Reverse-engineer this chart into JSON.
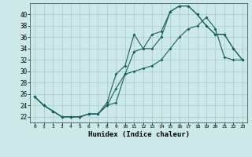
{
  "xlabel": "Humidex (Indice chaleur)",
  "ylabel": "",
  "background_color": "#cce8e8",
  "grid_color": "#aacece",
  "line_color": "#1a6060",
  "xlim": [
    -0.5,
    23.5
  ],
  "ylim": [
    21,
    42
  ],
  "yticks": [
    22,
    24,
    26,
    28,
    30,
    32,
    34,
    36,
    38,
    40
  ],
  "xticks": [
    0,
    1,
    2,
    3,
    4,
    5,
    6,
    7,
    8,
    9,
    10,
    11,
    12,
    13,
    14,
    15,
    16,
    17,
    18,
    19,
    20,
    21,
    22,
    23
  ],
  "series1_x": [
    0,
    1,
    2,
    3,
    4,
    5,
    6,
    7,
    8,
    9,
    10,
    11,
    12,
    13,
    14,
    15,
    16,
    17,
    18,
    19,
    20,
    21,
    22,
    23
  ],
  "series1_y": [
    25.5,
    24.0,
    23.0,
    22.0,
    22.0,
    22.0,
    22.5,
    22.5,
    24.0,
    27.0,
    29.5,
    33.5,
    34.0,
    36.5,
    37.0,
    40.5,
    41.5,
    41.5,
    40.0,
    38.0,
    36.5,
    36.5,
    34.0,
    32.0
  ],
  "series2_x": [
    0,
    1,
    2,
    3,
    4,
    5,
    6,
    7,
    8,
    9,
    10,
    11,
    12,
    13,
    14,
    15,
    16,
    17,
    18,
    19,
    20,
    21,
    22,
    23
  ],
  "series2_y": [
    25.5,
    24.0,
    23.0,
    22.0,
    22.0,
    22.0,
    22.5,
    22.5,
    24.5,
    29.5,
    31.0,
    36.5,
    34.0,
    34.0,
    36.0,
    40.5,
    41.5,
    41.5,
    40.0,
    38.0,
    36.5,
    36.5,
    34.0,
    32.0
  ],
  "series3_x": [
    0,
    1,
    2,
    3,
    4,
    5,
    6,
    7,
    8,
    9,
    10,
    11,
    12,
    13,
    14,
    15,
    16,
    17,
    18,
    19,
    20,
    21,
    22,
    23
  ],
  "series3_y": [
    25.5,
    24.0,
    23.0,
    22.0,
    22.0,
    22.0,
    22.5,
    22.5,
    24.0,
    24.5,
    29.5,
    30.0,
    30.5,
    31.0,
    32.0,
    34.0,
    36.0,
    37.5,
    38.0,
    39.5,
    37.5,
    32.5,
    32.0,
    32.0
  ]
}
